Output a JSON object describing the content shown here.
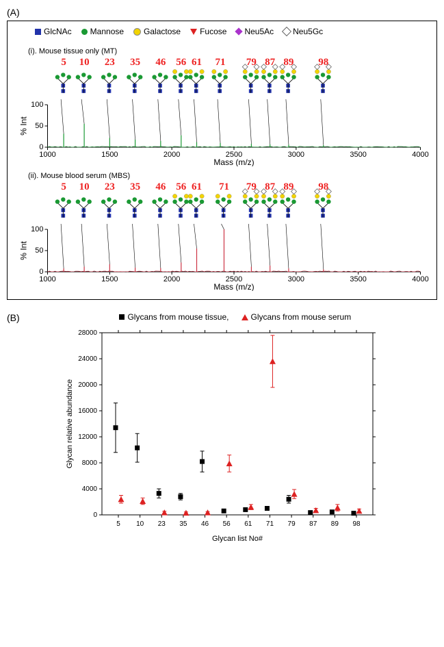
{
  "panelA": {
    "label": "(A)",
    "legend": [
      {
        "name": "GlcNAc",
        "symbol": "sq-blue"
      },
      {
        "name": "Mannose",
        "symbol": "circ-green"
      },
      {
        "name": "Galactose",
        "symbol": "circ-yellow"
      },
      {
        "name": "Fucose",
        "symbol": "tri-red"
      },
      {
        "name": "Neu5Ac",
        "symbol": "dia-purple"
      },
      {
        "name": "Neu5Gc",
        "symbol": "dia-white"
      }
    ],
    "spectra": [
      {
        "title": "(i). Mouse tissue only (MT)",
        "color": "#1a9933",
        "xmin": 1000,
        "xmax": 4000,
        "xticks": [
          1000,
          1500,
          2000,
          2500,
          3000,
          3500,
          4000
        ],
        "xaxis": "Mass (m/z)",
        "yaxis": "% Int",
        "yticks": [
          0,
          50,
          100
        ],
        "peaks": [
          {
            "m": 1130,
            "i": 32,
            "label": "5"
          },
          {
            "m": 1295,
            "i": 55,
            "label": "10"
          },
          {
            "m": 1500,
            "i": 22,
            "label": "23"
          },
          {
            "m": 1705,
            "i": 18,
            "label": "35"
          },
          {
            "m": 1910,
            "i": 15,
            "label": "46"
          },
          {
            "m": 2075,
            "i": 28,
            "label": "56"
          },
          {
            "m": 2200,
            "i": 12,
            "label": "61"
          },
          {
            "m": 2390,
            "i": 10,
            "label": "71"
          },
          {
            "m": 2640,
            "i": 8,
            "label": "79"
          },
          {
            "m": 2790,
            "i": 7,
            "label": "87"
          },
          {
            "m": 2940,
            "i": 6,
            "label": "89"
          },
          {
            "m": 3220,
            "i": 5,
            "label": "98"
          }
        ]
      },
      {
        "title": "(ii). Mouse blood serum (MBS)",
        "color": "#cc3344",
        "xmin": 1000,
        "xmax": 4000,
        "xticks": [
          1000,
          1500,
          2000,
          2500,
          3000,
          3500,
          4000
        ],
        "xaxis": "Mass (m/z)",
        "yaxis": "% Int",
        "yticks": [
          0,
          50,
          100
        ],
        "peaks": [
          {
            "m": 1130,
            "i": 8,
            "label": "5"
          },
          {
            "m": 1295,
            "i": 12,
            "label": "10"
          },
          {
            "m": 1500,
            "i": 18,
            "label": "23"
          },
          {
            "m": 1705,
            "i": 10,
            "label": "35"
          },
          {
            "m": 1910,
            "i": 9,
            "label": "46"
          },
          {
            "m": 2075,
            "i": 22,
            "label": "56"
          },
          {
            "m": 2200,
            "i": 55,
            "label": "61"
          },
          {
            "m": 2420,
            "i": 100,
            "label": "71"
          },
          {
            "m": 2640,
            "i": 12,
            "label": "79"
          },
          {
            "m": 2790,
            "i": 15,
            "label": "87"
          },
          {
            "m": 2940,
            "i": 8,
            "label": "89"
          },
          {
            "m": 3220,
            "i": 6,
            "label": "98"
          }
        ]
      }
    ]
  },
  "panelB": {
    "label": "(B)",
    "legend": [
      {
        "name": "Glycans from mouse tissue,",
        "symbol": "sq-black"
      },
      {
        "name": "Glycans from mouse serum",
        "symbol": "tri-up-red"
      }
    ],
    "chart": {
      "type": "scatter",
      "xaxis": "Glycan list No#",
      "yaxis": "Glycan relative abundance",
      "categories": [
        "5",
        "10",
        "23",
        "35",
        "46",
        "56",
        "61",
        "71",
        "79",
        "87",
        "89",
        "98"
      ],
      "ymin": 0,
      "ymax": 28000,
      "ytick_step": 4000,
      "series": [
        {
          "name": "tissue",
          "marker": "square",
          "color": "#000000",
          "points": [
            {
              "x": 0,
              "y": 13400,
              "eL": 3800,
              "eH": 3800
            },
            {
              "x": 1,
              "y": 10300,
              "eL": 2200,
              "eH": 2200
            },
            {
              "x": 2,
              "y": 3300,
              "eL": 700,
              "eH": 700
            },
            {
              "x": 3,
              "y": 2800,
              "eL": 500,
              "eH": 500
            },
            {
              "x": 4,
              "y": 8200,
              "eL": 1600,
              "eH": 1600
            },
            {
              "x": 5,
              "y": 600,
              "eL": 200,
              "eH": 200
            },
            {
              "x": 6,
              "y": 800,
              "eL": 200,
              "eH": 200
            },
            {
              "x": 7,
              "y": 1000,
              "eL": 300,
              "eH": 300
            },
            {
              "x": 8,
              "y": 2400,
              "eL": 600,
              "eH": 600
            },
            {
              "x": 9,
              "y": 350,
              "eL": 150,
              "eH": 150
            },
            {
              "x": 10,
              "y": 450,
              "eL": 200,
              "eH": 200
            },
            {
              "x": 11,
              "y": 250,
              "eL": 150,
              "eH": 150
            }
          ]
        },
        {
          "name": "serum",
          "marker": "triangle",
          "color": "#dd2222",
          "points": [
            {
              "x": 0,
              "y": 2400,
              "eL": 600,
              "eH": 600
            },
            {
              "x": 1,
              "y": 2100,
              "eL": 500,
              "eH": 500
            },
            {
              "x": 2,
              "y": 350,
              "eL": 200,
              "eH": 200
            },
            {
              "x": 3,
              "y": 300,
              "eL": 150,
              "eH": 150
            },
            {
              "x": 4,
              "y": 350,
              "eL": 150,
              "eH": 150
            },
            {
              "x": 5,
              "y": 7900,
              "eL": 1300,
              "eH": 1300
            },
            {
              "x": 6,
              "y": 1200,
              "eL": 400,
              "eH": 400
            },
            {
              "x": 7,
              "y": 23600,
              "eL": 4000,
              "eH": 4000
            },
            {
              "x": 8,
              "y": 3200,
              "eL": 700,
              "eH": 700
            },
            {
              "x": 9,
              "y": 700,
              "eL": 300,
              "eH": 300
            },
            {
              "x": 10,
              "y": 1100,
              "eL": 500,
              "eH": 500
            },
            {
              "x": 11,
              "y": 600,
              "eL": 300,
              "eH": 300
            }
          ]
        }
      ]
    }
  },
  "style": {
    "background": "#ffffff",
    "axis_color": "#000000",
    "tick_fontsize": 10,
    "label_fontsize": 11
  }
}
